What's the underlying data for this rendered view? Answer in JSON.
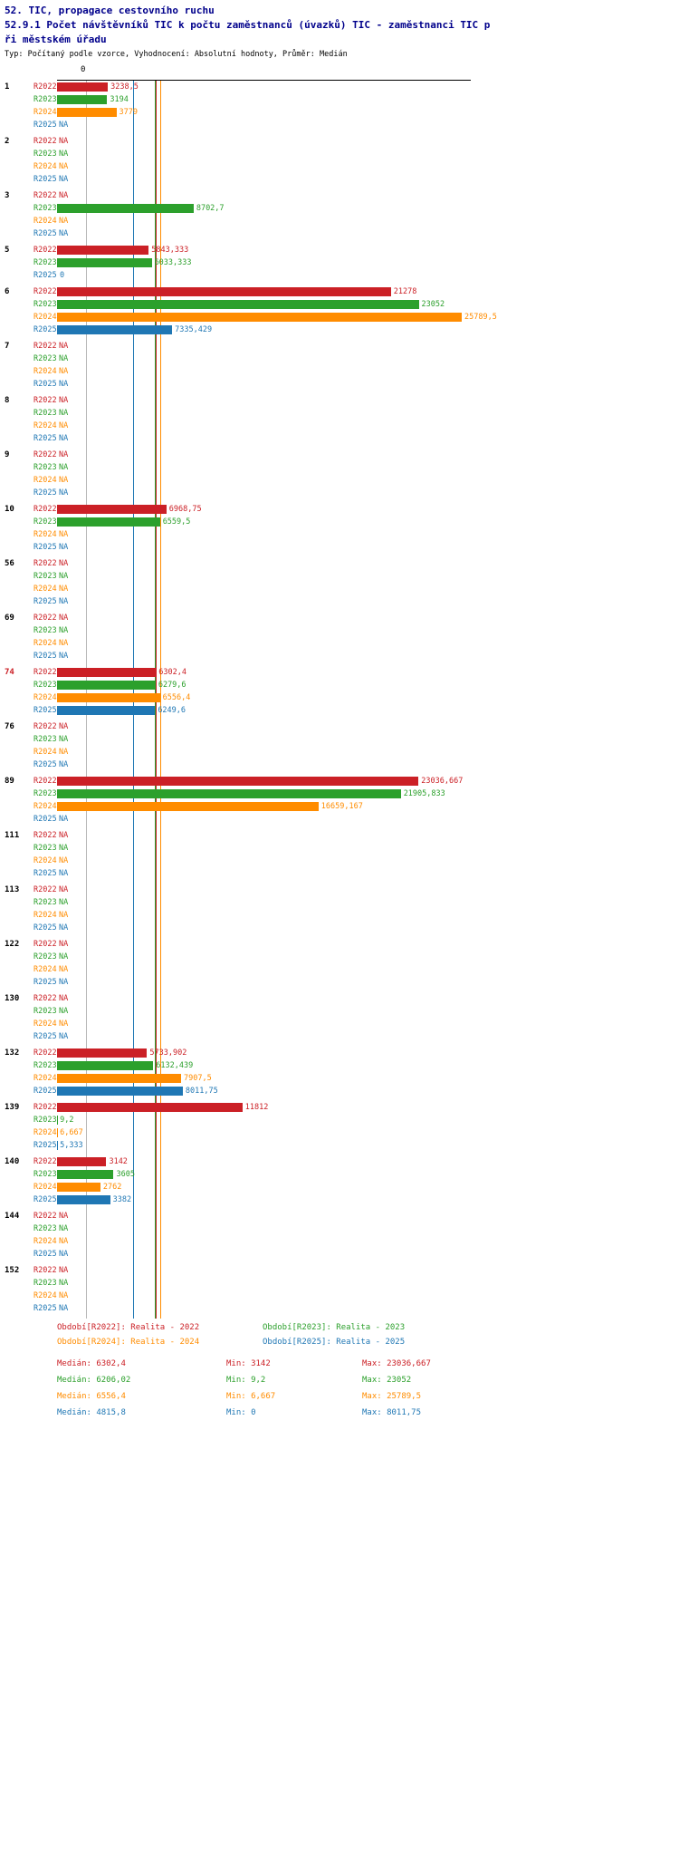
{
  "header": {
    "title1": "52. TIC, propagace cestovního ruchu",
    "title2": "52.9.1 Počet návštěvníků TIC k počtu zaměstnanců (úvazků) TIC - zaměstnanci TIC p",
    "title3": "ři městském úřadu",
    "subtitle": "Typ: Počítaný podle vzorce, Vyhodnocení: Absolutní hodnoty, Průměr: Medián"
  },
  "chart_data": {
    "type": "bar",
    "orientation": "horizontal",
    "title": "52.9.1 Počet návštěvníků TIC k počtu zaměstnanců (úvazků) TIC - zaměstnanci TIC při městském úřadu",
    "legend_position": "bottom",
    "value_axis": {
      "zero_tick": "0",
      "xlim": [
        0,
        25789.5
      ]
    },
    "series": [
      "R2022",
      "R2023",
      "R2024",
      "R2025"
    ],
    "colors": {
      "R2022": "#cb2026",
      "R2023": "#2ca02c",
      "R2024": "#ff8c00",
      "R2025": "#1f77b4"
    },
    "na_text": "NA",
    "medians": {
      "R2022": 6302.4,
      "R2023": 6206.02,
      "R2024": 6556.4,
      "R2025": 4815.8
    },
    "groups": [
      {
        "id": "1",
        "rows": [
          {
            "s": "R2022",
            "v": 3238.5,
            "t": "3238,5"
          },
          {
            "s": "R2023",
            "v": 3194,
            "t": "3194"
          },
          {
            "s": "R2024",
            "v": 3779,
            "t": "3779"
          },
          {
            "s": "R2025",
            "v": null,
            "t": "NA"
          }
        ]
      },
      {
        "id": "2",
        "rows": [
          {
            "s": "R2022",
            "v": null,
            "t": "NA"
          },
          {
            "s": "R2023",
            "v": null,
            "t": "NA"
          },
          {
            "s": "R2024",
            "v": null,
            "t": "NA"
          },
          {
            "s": "R2025",
            "v": null,
            "t": "NA"
          }
        ]
      },
      {
        "id": "3",
        "rows": [
          {
            "s": "R2022",
            "v": null,
            "t": "NA"
          },
          {
            "s": "R2023",
            "v": 8702.7,
            "t": "8702,7"
          },
          {
            "s": "R2024",
            "v": null,
            "t": "NA"
          },
          {
            "s": "R2025",
            "v": null,
            "t": "NA"
          }
        ]
      },
      {
        "id": "5",
        "rows": [
          {
            "s": "R2022",
            "v": 5843.333,
            "t": "5843,333"
          },
          {
            "s": "R2023",
            "v": 6033.333,
            "t": "6033,333"
          },
          {
            "s": "R2025",
            "v": 0,
            "t": "0"
          }
        ]
      },
      {
        "id": "6",
        "rows": [
          {
            "s": "R2022",
            "v": 21278,
            "t": "21278"
          },
          {
            "s": "R2023",
            "v": 23052,
            "t": "23052"
          },
          {
            "s": "R2024",
            "v": 25789.5,
            "t": "25789,5"
          },
          {
            "s": "R2025",
            "v": 7335.429,
            "t": "7335,429"
          }
        ]
      },
      {
        "id": "7",
        "rows": [
          {
            "s": "R2022",
            "v": null,
            "t": "NA"
          },
          {
            "s": "R2023",
            "v": null,
            "t": "NA"
          },
          {
            "s": "R2024",
            "v": null,
            "t": "NA"
          },
          {
            "s": "R2025",
            "v": null,
            "t": "NA"
          }
        ]
      },
      {
        "id": "8",
        "rows": [
          {
            "s": "R2022",
            "v": null,
            "t": "NA"
          },
          {
            "s": "R2023",
            "v": null,
            "t": "NA"
          },
          {
            "s": "R2024",
            "v": null,
            "t": "NA"
          },
          {
            "s": "R2025",
            "v": null,
            "t": "NA"
          }
        ]
      },
      {
        "id": "9",
        "rows": [
          {
            "s": "R2022",
            "v": null,
            "t": "NA"
          },
          {
            "s": "R2023",
            "v": null,
            "t": "NA"
          },
          {
            "s": "R2024",
            "v": null,
            "t": "NA"
          },
          {
            "s": "R2025",
            "v": null,
            "t": "NA"
          }
        ]
      },
      {
        "id": "10",
        "rows": [
          {
            "s": "R2022",
            "v": 6968.75,
            "t": "6968,75"
          },
          {
            "s": "R2023",
            "v": 6559.5,
            "t": "6559,5"
          },
          {
            "s": "R2024",
            "v": null,
            "t": "NA"
          },
          {
            "s": "R2025",
            "v": null,
            "t": "NA"
          }
        ]
      },
      {
        "id": "56",
        "rows": [
          {
            "s": "R2022",
            "v": null,
            "t": "NA"
          },
          {
            "s": "R2023",
            "v": null,
            "t": "NA"
          },
          {
            "s": "R2024",
            "v": null,
            "t": "NA"
          },
          {
            "s": "R2025",
            "v": null,
            "t": "NA"
          }
        ]
      },
      {
        "id": "69",
        "rows": [
          {
            "s": "R2022",
            "v": null,
            "t": "NA"
          },
          {
            "s": "R2023",
            "v": null,
            "t": "NA"
          },
          {
            "s": "R2024",
            "v": null,
            "t": "NA"
          },
          {
            "s": "R2025",
            "v": null,
            "t": "NA"
          }
        ]
      },
      {
        "id": "74",
        "highlight": true,
        "rows": [
          {
            "s": "R2022",
            "v": 6302.4,
            "t": "6302,4"
          },
          {
            "s": "R2023",
            "v": 6279.6,
            "t": "6279,6"
          },
          {
            "s": "R2024",
            "v": 6556.4,
            "t": "6556,4"
          },
          {
            "s": "R2025",
            "v": 6249.6,
            "t": "6249,6"
          }
        ]
      },
      {
        "id": "76",
        "rows": [
          {
            "s": "R2022",
            "v": null,
            "t": "NA"
          },
          {
            "s": "R2023",
            "v": null,
            "t": "NA"
          },
          {
            "s": "R2024",
            "v": null,
            "t": "NA"
          },
          {
            "s": "R2025",
            "v": null,
            "t": "NA"
          }
        ]
      },
      {
        "id": "89",
        "rows": [
          {
            "s": "R2022",
            "v": 23036.667,
            "t": "23036,667"
          },
          {
            "s": "R2023",
            "v": 21905.833,
            "t": "21905,833"
          },
          {
            "s": "R2024",
            "v": 16659.167,
            "t": "16659,167"
          },
          {
            "s": "R2025",
            "v": null,
            "t": "NA"
          }
        ]
      },
      {
        "id": "111",
        "rows": [
          {
            "s": "R2022",
            "v": null,
            "t": "NA"
          },
          {
            "s": "R2023",
            "v": null,
            "t": "NA"
          },
          {
            "s": "R2024",
            "v": null,
            "t": "NA"
          },
          {
            "s": "R2025",
            "v": null,
            "t": "NA"
          }
        ]
      },
      {
        "id": "113",
        "rows": [
          {
            "s": "R2022",
            "v": null,
            "t": "NA"
          },
          {
            "s": "R2023",
            "v": null,
            "t": "NA"
          },
          {
            "s": "R2024",
            "v": null,
            "t": "NA"
          },
          {
            "s": "R2025",
            "v": null,
            "t": "NA"
          }
        ]
      },
      {
        "id": "122",
        "rows": [
          {
            "s": "R2022",
            "v": null,
            "t": "NA"
          },
          {
            "s": "R2023",
            "v": null,
            "t": "NA"
          },
          {
            "s": "R2024",
            "v": null,
            "t": "NA"
          },
          {
            "s": "R2025",
            "v": null,
            "t": "NA"
          }
        ]
      },
      {
        "id": "130",
        "rows": [
          {
            "s": "R2022",
            "v": null,
            "t": "NA"
          },
          {
            "s": "R2023",
            "v": null,
            "t": "NA"
          },
          {
            "s": "R2024",
            "v": null,
            "t": "NA"
          },
          {
            "s": "R2025",
            "v": null,
            "t": "NA"
          }
        ]
      },
      {
        "id": "132",
        "rows": [
          {
            "s": "R2022",
            "v": 5733.902,
            "t": "5733,902"
          },
          {
            "s": "R2023",
            "v": 6132.439,
            "t": "6132,439"
          },
          {
            "s": "R2024",
            "v": 7907.5,
            "t": "7907,5"
          },
          {
            "s": "R2025",
            "v": 8011.75,
            "t": "8011,75"
          }
        ]
      },
      {
        "id": "139",
        "rows": [
          {
            "s": "R2022",
            "v": 11812,
            "t": "11812"
          },
          {
            "s": "R2023",
            "v": 9.2,
            "t": "9,2"
          },
          {
            "s": "R2024",
            "v": 6.667,
            "t": "6,667"
          },
          {
            "s": "R2025",
            "v": 5.333,
            "t": "5,333"
          }
        ]
      },
      {
        "id": "140",
        "rows": [
          {
            "s": "R2022",
            "v": 3142,
            "t": "3142"
          },
          {
            "s": "R2023",
            "v": 3605,
            "t": "3605"
          },
          {
            "s": "R2024",
            "v": 2762,
            "t": "2762"
          },
          {
            "s": "R2025",
            "v": 3382,
            "t": "3382"
          }
        ]
      },
      {
        "id": "144",
        "rows": [
          {
            "s": "R2022",
            "v": null,
            "t": "NA"
          },
          {
            "s": "R2023",
            "v": null,
            "t": "NA"
          },
          {
            "s": "R2024",
            "v": null,
            "t": "NA"
          },
          {
            "s": "R2025",
            "v": null,
            "t": "NA"
          }
        ]
      },
      {
        "id": "152",
        "rows": [
          {
            "s": "R2022",
            "v": null,
            "t": "NA"
          },
          {
            "s": "R2023",
            "v": null,
            "t": "NA"
          },
          {
            "s": "R2024",
            "v": null,
            "t": "NA"
          },
          {
            "s": "R2025",
            "v": null,
            "t": "NA"
          }
        ]
      }
    ]
  },
  "legend": [
    {
      "series": "R2022",
      "label": "Období[R2022]: Realita - 2022"
    },
    {
      "series": "R2023",
      "label": "Období[R2023]: Realita - 2023"
    },
    {
      "series": "R2024",
      "label": "Období[R2024]: Realita - 2024"
    },
    {
      "series": "R2025",
      "label": "Období[R2025]: Realita - 2025"
    }
  ],
  "stats": [
    {
      "series": "R2022",
      "median": "Medián: 6302,4",
      "min": "Min: 3142",
      "max": "Max: 23036,667"
    },
    {
      "series": "R2023",
      "median": "Medián: 6206,02",
      "min": "Min: 9,2",
      "max": "Max: 23052"
    },
    {
      "series": "R2024",
      "median": "Medián: 6556,4",
      "min": "Min: 6,667",
      "max": "Max: 25789,5"
    },
    {
      "series": "R2025",
      "median": "Medián: 4815,8",
      "min": "Min: 0",
      "max": "Max: 8011,75"
    }
  ]
}
